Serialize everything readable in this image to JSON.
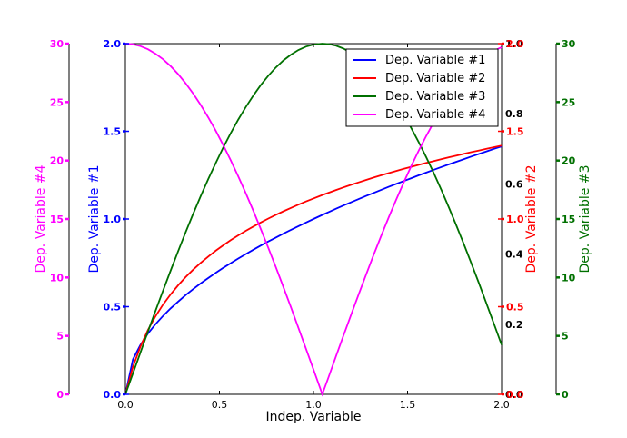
{
  "chart_data": {
    "type": "line",
    "xlabel": "Indep. Variable",
    "x": [
      0,
      0.04,
      0.08,
      0.12,
      0.16,
      0.2,
      0.24,
      0.28,
      0.32,
      0.36,
      0.4,
      0.44,
      0.48,
      0.52,
      0.56,
      0.6,
      0.64,
      0.68,
      0.72,
      0.76,
      0.8,
      0.84,
      0.88,
      0.92,
      0.96,
      1.0,
      1.047,
      1.08,
      1.12,
      1.16,
      1.2,
      1.24,
      1.28,
      1.32,
      1.36,
      1.4,
      1.44,
      1.48,
      1.52,
      1.56,
      1.6,
      1.64,
      1.68,
      1.72,
      1.76,
      1.8,
      1.84,
      1.88,
      1.92,
      1.96,
      2.0
    ],
    "xlim": [
      0,
      2.0
    ],
    "xticks": [
      "0.0",
      "0.5",
      "1.0",
      "1.5",
      "2.0"
    ],
    "series": [
      {
        "name": "Dep. Variable #1",
        "color": "#0000ff",
        "axis": "y1",
        "formula": "sqrt"
      },
      {
        "name": "Dep. Variable #2",
        "color": "#ff0000",
        "axis": "y2",
        "formula": "log"
      },
      {
        "name": "Dep. Variable #3",
        "color": "#007000",
        "axis": "y3",
        "formula": "sin"
      },
      {
        "name": "Dep. Variable #4",
        "color": "#ff00ff",
        "axis": "y4",
        "formula": "abscos"
      }
    ],
    "axes": {
      "y1": {
        "label": "Dep. Variable #1",
        "color": "#0000ff",
        "ylim": [
          0,
          2.0
        ],
        "ticks": [
          "0.0",
          "0.5",
          "1.0",
          "1.5",
          "2.0"
        ],
        "values": [
          0,
          0.5,
          1.0,
          1.5,
          2.0
        ]
      },
      "y2": {
        "label": "Dep. Variable #2",
        "color": "#ff0000",
        "ylim": [
          0,
          2.0
        ],
        "ticks": [
          "0.0",
          "0.5",
          "1.0",
          "1.5",
          "2.0"
        ],
        "values": [
          0,
          0.5,
          1.0,
          1.5,
          2.0
        ]
      },
      "y3": {
        "label": "Dep. Variable #3",
        "color": "#007000",
        "ylim": [
          0,
          30
        ],
        "ticks": [
          "0",
          "5",
          "10",
          "15",
          "20",
          "25",
          "30"
        ],
        "values": [
          0,
          5,
          10,
          15,
          20,
          25,
          30
        ]
      },
      "y4": {
        "label": "Dep. Variable #4",
        "color": "#ff00ff",
        "ylim": [
          0,
          30
        ],
        "ticks": [
          "0",
          "5",
          "10",
          "15",
          "20",
          "25",
          "30"
        ],
        "values": [
          0,
          5,
          10,
          15,
          20,
          25,
          30
        ]
      },
      "twin": {
        "color": "#000000",
        "ylim": [
          0,
          1.0
        ],
        "ticks": [
          "0.0",
          "0.2",
          "0.4",
          "0.6",
          "0.8",
          "1.0"
        ],
        "values": [
          0,
          0.2,
          0.4,
          0.6,
          0.8,
          1.0
        ]
      }
    },
    "legend_position": "top-right",
    "grid": false
  }
}
